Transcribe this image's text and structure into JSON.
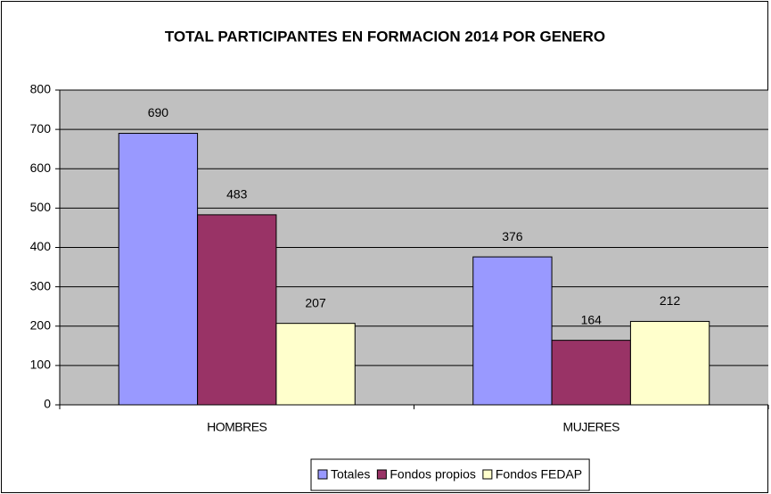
{
  "chart_data": {
    "type": "bar",
    "title": "TOTAL PARTICIPANTES EN FORMACION 2014 POR GENERO",
    "categories": [
      "HOMBRES",
      "MUJERES"
    ],
    "series": [
      {
        "name": "Totales",
        "color": "#9999ff",
        "values": [
          690,
          376
        ]
      },
      {
        "name": "Fondos propios",
        "color": "#993366",
        "values": [
          483,
          164
        ]
      },
      {
        "name": "Fondos FEDAP",
        "color": "#ffffcc",
        "values": [
          207,
          212
        ]
      }
    ],
    "ylim": [
      0,
      800
    ],
    "yticks": [
      0,
      100,
      200,
      300,
      400,
      500,
      600,
      700,
      800
    ],
    "grid": true,
    "legend": "bottom"
  }
}
